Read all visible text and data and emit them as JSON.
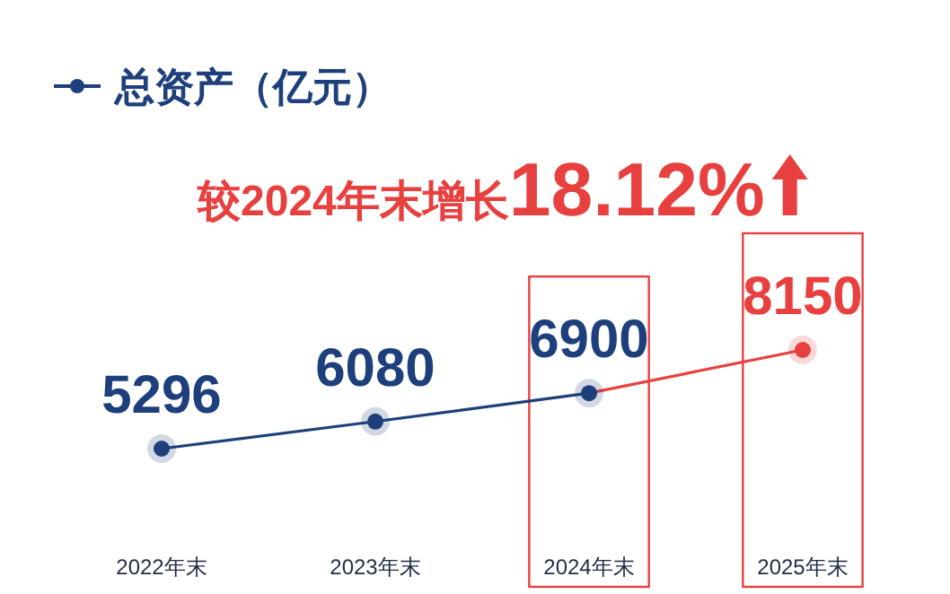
{
  "chart_data": {
    "type": "line",
    "categories": [
      "2022年末",
      "2023年末",
      "2024年末",
      "2025年末"
    ],
    "series": [
      {
        "name": "总资产（亿元）",
        "color": "#1d3f7c",
        "colors": [
          "#1d3f7c",
          "#1d3f7c",
          "#1d3f7c",
          "#e8403f"
        ],
        "values": [
          5296,
          6080,
          6900,
          8150
        ]
      }
    ],
    "data_labels": true,
    "marker": "circle",
    "legend": "top left",
    "annotations": [
      "较2024年末增长18.12%"
    ]
  }
}
